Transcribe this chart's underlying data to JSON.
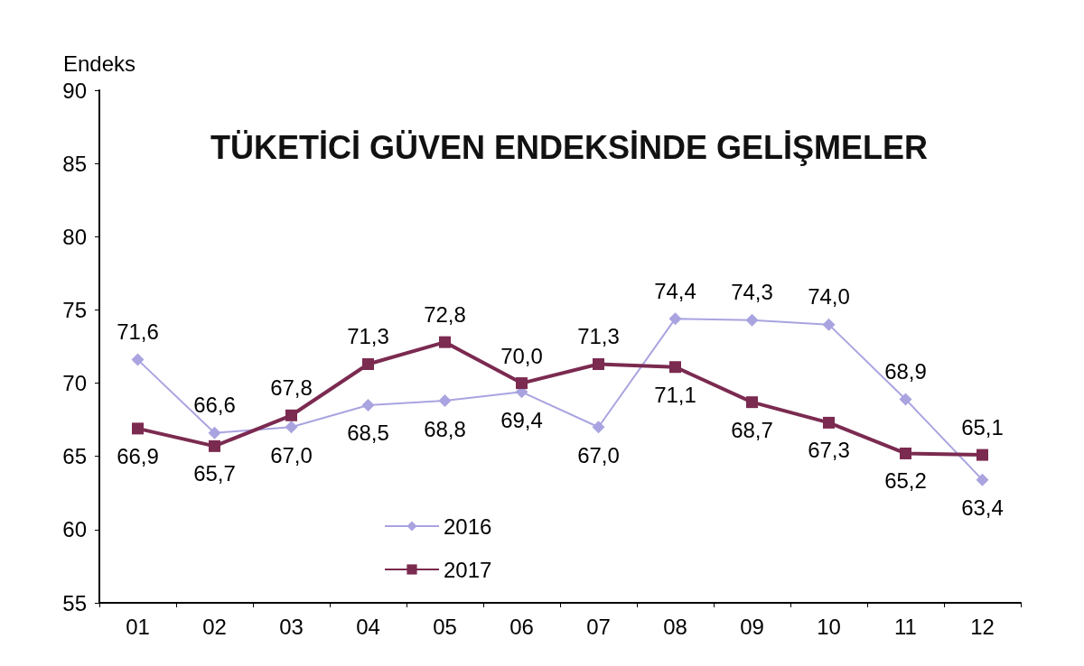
{
  "chart_data": {
    "type": "line",
    "title": "TÜKETİCİ GÜVEN ENDEKSİNDE GELİŞMELER",
    "ylabel": "Endeks",
    "categories": [
      "01",
      "02",
      "03",
      "04",
      "05",
      "06",
      "07",
      "08",
      "09",
      "10",
      "11",
      "12"
    ],
    "series": [
      {
        "name": "2016",
        "color": "#a9a4e0",
        "marker": "diamond",
        "values": [
          71.6,
          66.6,
          67.0,
          68.5,
          68.8,
          69.4,
          67.0,
          74.4,
          74.3,
          74.0,
          68.9,
          63.4
        ],
        "value_labels": [
          "71,6",
          "66,6",
          "67,0",
          "68,5",
          "68,8",
          "69,4",
          "67,0",
          "74,4",
          "74,3",
          "74,0",
          "68,9",
          "63,4"
        ]
      },
      {
        "name": "2017",
        "color": "#7b2a50",
        "marker": "square",
        "values": [
          66.9,
          65.7,
          67.8,
          71.3,
          72.8,
          70.0,
          71.3,
          71.1,
          68.7,
          67.3,
          65.2,
          65.1
        ],
        "value_labels": [
          "66,9",
          "65,7",
          "67,8",
          "71,3",
          "72,8",
          "70,0",
          "71,3",
          "71,1",
          "68,7",
          "67,3",
          "65,2",
          "65,1"
        ]
      }
    ],
    "ylim": [
      55,
      90
    ],
    "yticks": [
      55,
      60,
      65,
      70,
      75,
      80,
      85,
      90
    ],
    "grid": false,
    "legend": "bottom left",
    "line_style": "solid"
  }
}
